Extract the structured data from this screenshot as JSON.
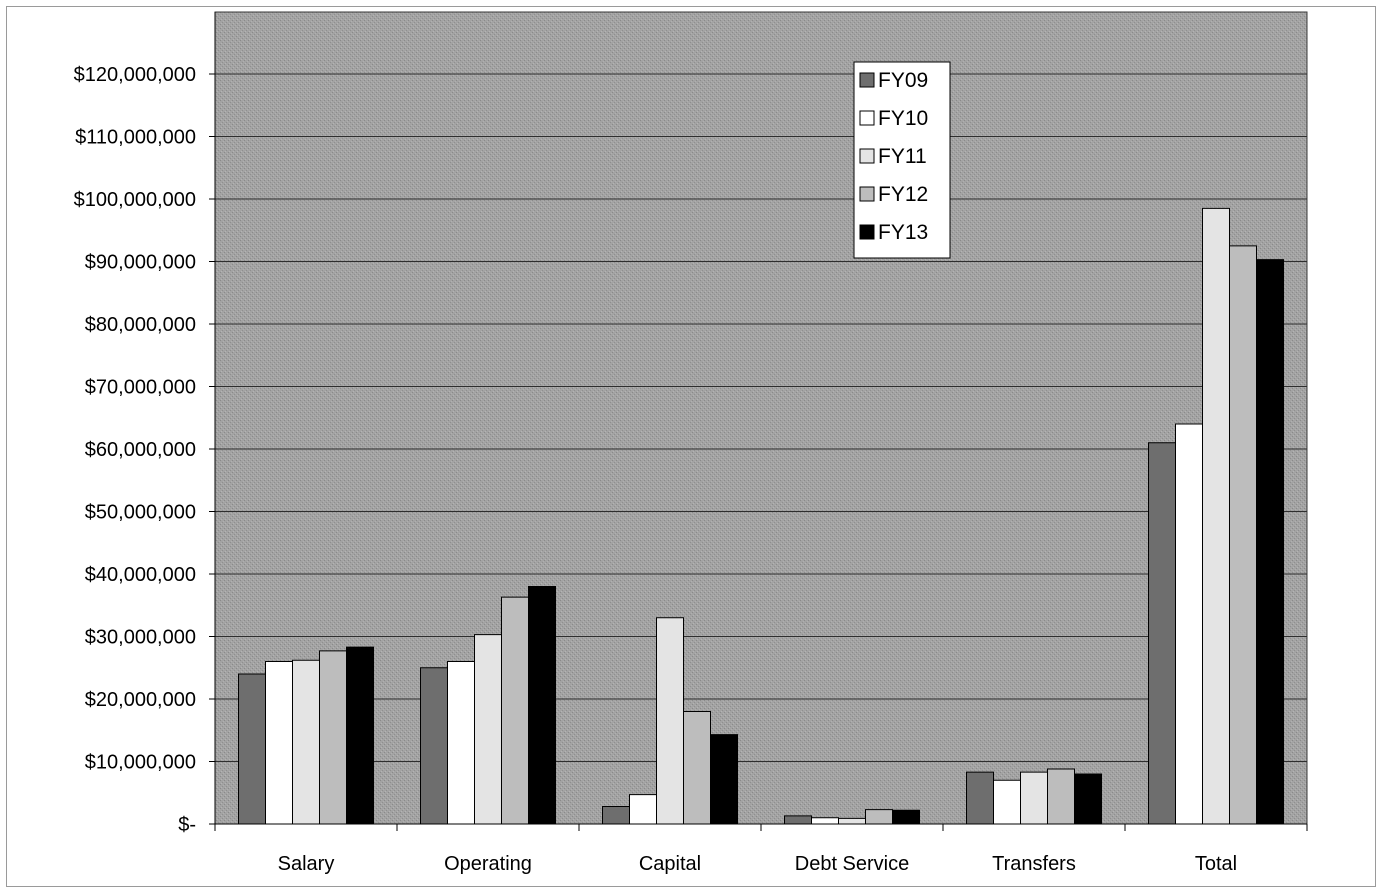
{
  "chart_data": {
    "type": "bar",
    "title": "",
    "xlabel": "",
    "ylabel": "",
    "ylim": [
      0,
      120000000
    ],
    "y_ticks": [
      0,
      10000000,
      20000000,
      30000000,
      40000000,
      50000000,
      60000000,
      70000000,
      80000000,
      90000000,
      100000000,
      110000000,
      120000000
    ],
    "y_tick_labels": [
      "$-",
      "$10,000,000",
      "$20,000,000",
      "$30,000,000",
      "$40,000,000",
      "$50,000,000",
      "$60,000,000",
      "$70,000,000",
      "$80,000,000",
      "$90,000,000",
      "$100,000,000",
      "$110,000,000",
      "$120,000,000"
    ],
    "categories": [
      "Salary",
      "Operating",
      "Capital",
      "Debt Service",
      "Transfers",
      "Total"
    ],
    "series": [
      {
        "name": "FY09",
        "color": "#6e6e6e",
        "values": [
          24000000,
          25000000,
          2800000,
          1300000,
          8300000,
          61000000
        ]
      },
      {
        "name": "FY10",
        "color": "#ffffff",
        "values": [
          26000000,
          26000000,
          4700000,
          1000000,
          7000000,
          64000000
        ]
      },
      {
        "name": "FY11",
        "color": "#e4e4e4",
        "values": [
          26200000,
          30300000,
          33000000,
          900000,
          8300000,
          98500000
        ]
      },
      {
        "name": "FY12",
        "color": "#bdbdbd",
        "values": [
          27700000,
          36300000,
          18000000,
          2300000,
          8800000,
          92500000
        ]
      },
      {
        "name": "FY13",
        "color": "#000000",
        "values": [
          28300000,
          38000000,
          14300000,
          2200000,
          8000000,
          90300000
        ]
      }
    ],
    "plot_background": "#9c9c9c",
    "grid": true,
    "legend_position": "top-right"
  }
}
